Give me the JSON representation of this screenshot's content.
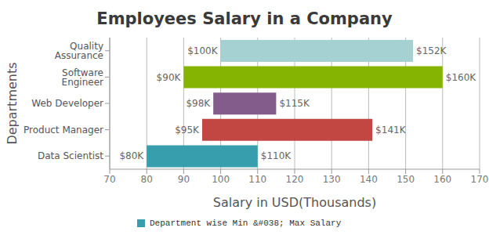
{
  "chart_data": {
    "type": "bar",
    "orientation": "horizontal",
    "title": "Employees Salary in a Company",
    "x_label": "Salary in USD(Thousands)",
    "y_label": "Departments",
    "categories": [
      "Quality Assurance",
      "Software Engineer",
      "Web Developer",
      "Product Manager",
      "Data Scientist"
    ],
    "series": [
      {
        "name": "Department wise Min &#038; Max Salary",
        "color": "#369ead",
        "colors": [
          "#a5d1d2",
          "#86b402",
          "#835c8b",
          "#c24642",
          "#369ead"
        ],
        "values": [
          [
            100,
            152
          ],
          [
            90,
            160
          ],
          [
            98,
            115
          ],
          [
            95,
            141
          ],
          [
            80,
            110
          ]
        ],
        "value_labels": [
          [
            "$100K",
            "$152K"
          ],
          [
            "$90K",
            "$160K"
          ],
          [
            "$98K",
            "$115K"
          ],
          [
            "$95K",
            "$141K"
          ],
          [
            "$80K",
            "$110K"
          ]
        ]
      }
    ],
    "xlim": [
      70,
      170
    ],
    "xticks": [
      70,
      80,
      90,
      100,
      110,
      120,
      130,
      140,
      150,
      160,
      170
    ],
    "grid": true,
    "data_labels": true,
    "legend": "bottom"
  }
}
